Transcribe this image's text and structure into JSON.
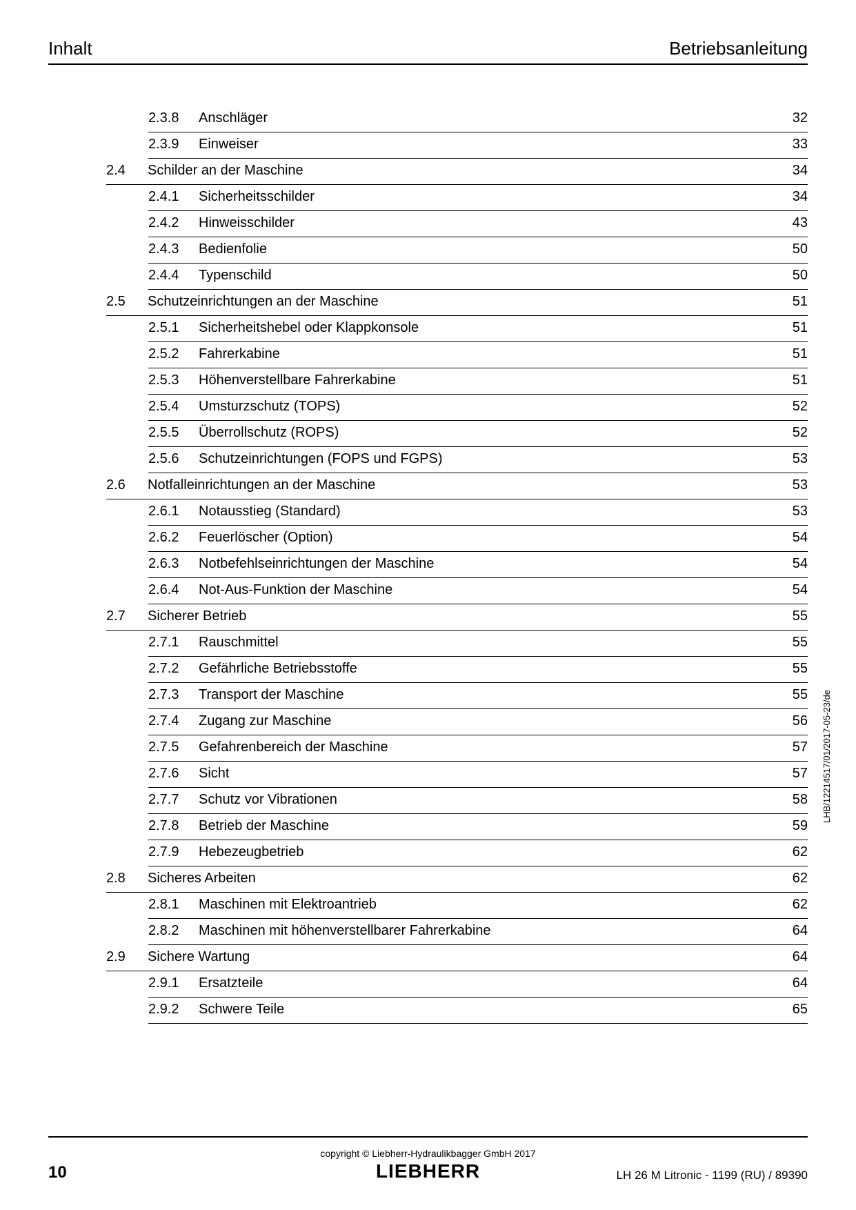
{
  "header": {
    "left": "Inhalt",
    "right": "Betriebsanleitung"
  },
  "toc_entries": [
    {
      "type": "sub",
      "num": "2.3.8",
      "title": "Anschläger",
      "page": "32"
    },
    {
      "type": "sub",
      "num": "2.3.9",
      "title": "Einweiser",
      "page": "33"
    },
    {
      "type": "section",
      "num": "2.4",
      "title": "Schilder an der Maschine",
      "page": "34"
    },
    {
      "type": "sub",
      "num": "2.4.1",
      "title": "Sicherheitsschilder",
      "page": "34"
    },
    {
      "type": "sub",
      "num": "2.4.2",
      "title": "Hinweisschilder",
      "page": "43"
    },
    {
      "type": "sub",
      "num": "2.4.3",
      "title": "Bedienfolie",
      "page": "50"
    },
    {
      "type": "sub",
      "num": "2.4.4",
      "title": "Typenschild",
      "page": "50"
    },
    {
      "type": "section",
      "num": "2.5",
      "title": "Schutzeinrichtungen an der Maschine",
      "page": "51"
    },
    {
      "type": "sub",
      "num": "2.5.1",
      "title": "Sicherheitshebel oder Klappkonsole",
      "page": "51"
    },
    {
      "type": "sub",
      "num": "2.5.2",
      "title": "Fahrerkabine",
      "page": "51"
    },
    {
      "type": "sub",
      "num": "2.5.3",
      "title": "Höhenverstellbare Fahrerkabine",
      "page": "51"
    },
    {
      "type": "sub",
      "num": "2.5.4",
      "title": "Umsturzschutz (TOPS)",
      "page": "52"
    },
    {
      "type": "sub",
      "num": "2.5.5",
      "title": "Überrollschutz (ROPS)",
      "page": "52"
    },
    {
      "type": "sub",
      "num": "2.5.6",
      "title": "Schutzeinrichtungen (FOPS und FGPS)",
      "page": "53"
    },
    {
      "type": "section",
      "num": "2.6",
      "title": "Notfalleinrichtungen an der Maschine",
      "page": "53"
    },
    {
      "type": "sub",
      "num": "2.6.1",
      "title": "Notausstieg (Standard)",
      "page": "53"
    },
    {
      "type": "sub",
      "num": "2.6.2",
      "title": "Feuerlöscher (Option)",
      "page": "54"
    },
    {
      "type": "sub",
      "num": "2.6.3",
      "title": "Notbefehlseinrichtungen der Maschine",
      "page": "54"
    },
    {
      "type": "sub",
      "num": "2.6.4",
      "title": "Not-Aus-Funktion der Maschine",
      "page": "54"
    },
    {
      "type": "section",
      "num": "2.7",
      "title": "Sicherer Betrieb",
      "page": "55"
    },
    {
      "type": "sub",
      "num": "2.7.1",
      "title": "Rauschmittel",
      "page": "55"
    },
    {
      "type": "sub",
      "num": "2.7.2",
      "title": "Gefährliche Betriebsstoffe",
      "page": "55"
    },
    {
      "type": "sub",
      "num": "2.7.3",
      "title": "Transport der Maschine",
      "page": "55"
    },
    {
      "type": "sub",
      "num": "2.7.4",
      "title": "Zugang zur Maschine",
      "page": "56"
    },
    {
      "type": "sub",
      "num": "2.7.5",
      "title": "Gefahrenbereich der Maschine",
      "page": "57"
    },
    {
      "type": "sub",
      "num": "2.7.6",
      "title": "Sicht",
      "page": "57"
    },
    {
      "type": "sub",
      "num": "2.7.7",
      "title": "Schutz vor Vibrationen",
      "page": "58"
    },
    {
      "type": "sub",
      "num": "2.7.8",
      "title": "Betrieb der Maschine",
      "page": "59"
    },
    {
      "type": "sub",
      "num": "2.7.9",
      "title": "Hebezeugbetrieb",
      "page": "62"
    },
    {
      "type": "section",
      "num": "2.8",
      "title": "Sicheres Arbeiten",
      "page": "62"
    },
    {
      "type": "sub",
      "num": "2.8.1",
      "title": "Maschinen mit Elektroantrieb",
      "page": "62"
    },
    {
      "type": "sub",
      "num": "2.8.2",
      "title": "Maschinen mit höhenverstellbarer Fahrerkabine",
      "page": "64"
    },
    {
      "type": "section",
      "num": "2.9",
      "title": "Sichere Wartung",
      "page": "64"
    },
    {
      "type": "sub",
      "num": "2.9.1",
      "title": "Ersatzteile",
      "page": "64"
    },
    {
      "type": "sub",
      "num": "2.9.2",
      "title": "Schwere Teile",
      "page": "65"
    }
  ],
  "footer": {
    "page_number": "10",
    "copyright": "copyright © Liebherr-Hydraulikbagger GmbH 2017",
    "logo": "LIEBHERR",
    "doc_info": "LH 26 M Litronic  - 1199 (RU) / 89390"
  },
  "side_text": "LHB/12214517/01/2017-05-23/de"
}
